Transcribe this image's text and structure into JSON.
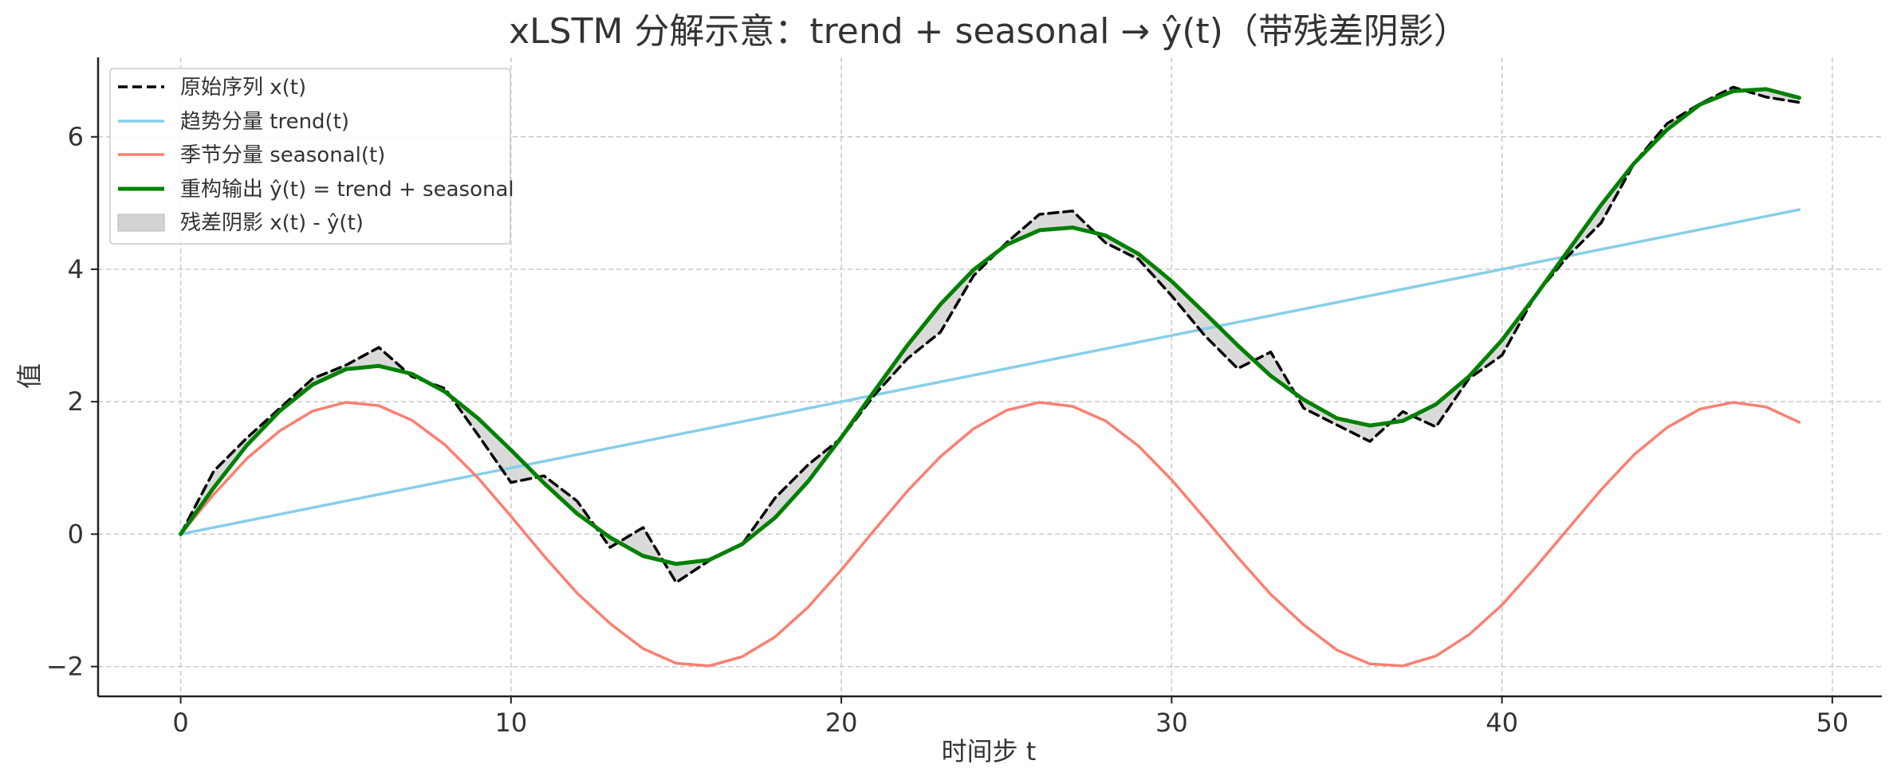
{
  "chart_data": {
    "type": "line",
    "title": "xLSTM 分解示意：trend + seasonal → ŷ(t)（带残差阴影）",
    "xlabel": "时间步 t",
    "ylabel": "值",
    "xlim": [
      -2.5,
      51.5
    ],
    "ylim": [
      -2.45,
      7.2
    ],
    "x_ticks": [
      0,
      10,
      20,
      30,
      40,
      50
    ],
    "y_ticks": [
      -2,
      0,
      2,
      4,
      6
    ],
    "x_tick_labels": [
      "0",
      "10",
      "20",
      "30",
      "40",
      "50"
    ],
    "y_tick_labels": [
      "−2",
      "0",
      "2",
      "4",
      "6"
    ],
    "grid": true,
    "legend_position": "top-left",
    "x": [
      0,
      1,
      2,
      3,
      4,
      5,
      6,
      7,
      8,
      9,
      10,
      11,
      12,
      13,
      14,
      15,
      16,
      17,
      18,
      19,
      20,
      21,
      22,
      23,
      24,
      25,
      26,
      27,
      28,
      29,
      30,
      31,
      32,
      33,
      34,
      35,
      36,
      37,
      38,
      39,
      40,
      41,
      42,
      43,
      44,
      45,
      46,
      47,
      48,
      49
    ],
    "series": [
      {
        "name": "原始序列 x(t)",
        "style": "dashed",
        "color": "#000000",
        "values": [
          0.0,
          0.95,
          1.45,
          1.9,
          2.35,
          2.55,
          2.82,
          2.38,
          2.2,
          1.5,
          0.78,
          0.88,
          0.5,
          -0.2,
          0.1,
          -0.73,
          -0.4,
          -0.15,
          0.55,
          1.05,
          1.45,
          2.1,
          2.65,
          3.05,
          3.9,
          4.4,
          4.83,
          4.88,
          4.4,
          4.15,
          3.6,
          3.0,
          2.5,
          2.75,
          1.9,
          1.65,
          1.4,
          1.85,
          1.62,
          2.35,
          2.7,
          3.6,
          4.2,
          4.7,
          5.6,
          6.2,
          6.5,
          6.75,
          6.6,
          6.52
        ]
      },
      {
        "name": "趋势分量 trend(t)",
        "style": "solid",
        "color": "#87ceeb",
        "values": [
          0.0,
          0.1,
          0.2,
          0.3,
          0.4,
          0.5,
          0.6,
          0.7,
          0.8,
          0.9,
          1.0,
          1.1,
          1.2,
          1.3,
          1.4,
          1.5,
          1.6,
          1.7,
          1.8,
          1.9,
          2.0,
          2.1,
          2.2,
          2.3,
          2.4,
          2.5,
          2.6,
          2.7,
          2.8,
          2.9,
          3.0,
          3.1,
          3.2,
          3.3,
          3.4,
          3.5,
          3.6,
          3.7,
          3.8,
          3.9,
          4.0,
          4.1,
          4.2,
          4.3,
          4.4,
          4.5,
          4.6,
          4.7,
          4.8,
          4.9
        ]
      },
      {
        "name": "季节分量 seasonal(t)",
        "style": "solid",
        "color": "#fa8072",
        "values": [
          0.0,
          0.6,
          1.14,
          1.56,
          1.86,
          1.99,
          1.94,
          1.72,
          1.35,
          0.85,
          0.27,
          -0.33,
          -0.89,
          -1.35,
          -1.73,
          -1.95,
          -1.99,
          -1.85,
          -1.55,
          -1.1,
          -0.54,
          0.06,
          0.65,
          1.17,
          1.59,
          1.87,
          1.99,
          1.93,
          1.71,
          1.33,
          0.82,
          0.24,
          -0.35,
          -0.91,
          -1.37,
          -1.75,
          -1.96,
          -1.99,
          -1.84,
          -1.52,
          -1.07,
          -0.51,
          0.08,
          0.67,
          1.2,
          1.61,
          1.89,
          1.99,
          1.92,
          1.69
        ]
      },
      {
        "name": "重构输出 ŷ(t) = trend + seasonal",
        "style": "solid",
        "color": "#008000",
        "values": [
          0.0,
          0.7,
          1.34,
          1.86,
          2.26,
          2.49,
          2.54,
          2.42,
          2.15,
          1.75,
          1.27,
          0.77,
          0.31,
          -0.05,
          -0.33,
          -0.45,
          -0.39,
          -0.15,
          0.25,
          0.8,
          1.46,
          2.16,
          2.85,
          3.47,
          3.99,
          4.37,
          4.59,
          4.63,
          4.51,
          4.23,
          3.82,
          3.34,
          2.85,
          2.39,
          2.03,
          1.75,
          1.64,
          1.71,
          1.96,
          2.38,
          2.93,
          3.59,
          4.28,
          4.97,
          5.6,
          6.11,
          6.49,
          6.69,
          6.72,
          6.59
        ]
      }
    ],
    "residual_label": "残差阴影 x(t) - ŷ(t)",
    "residual_color": "#d3d3d3"
  }
}
